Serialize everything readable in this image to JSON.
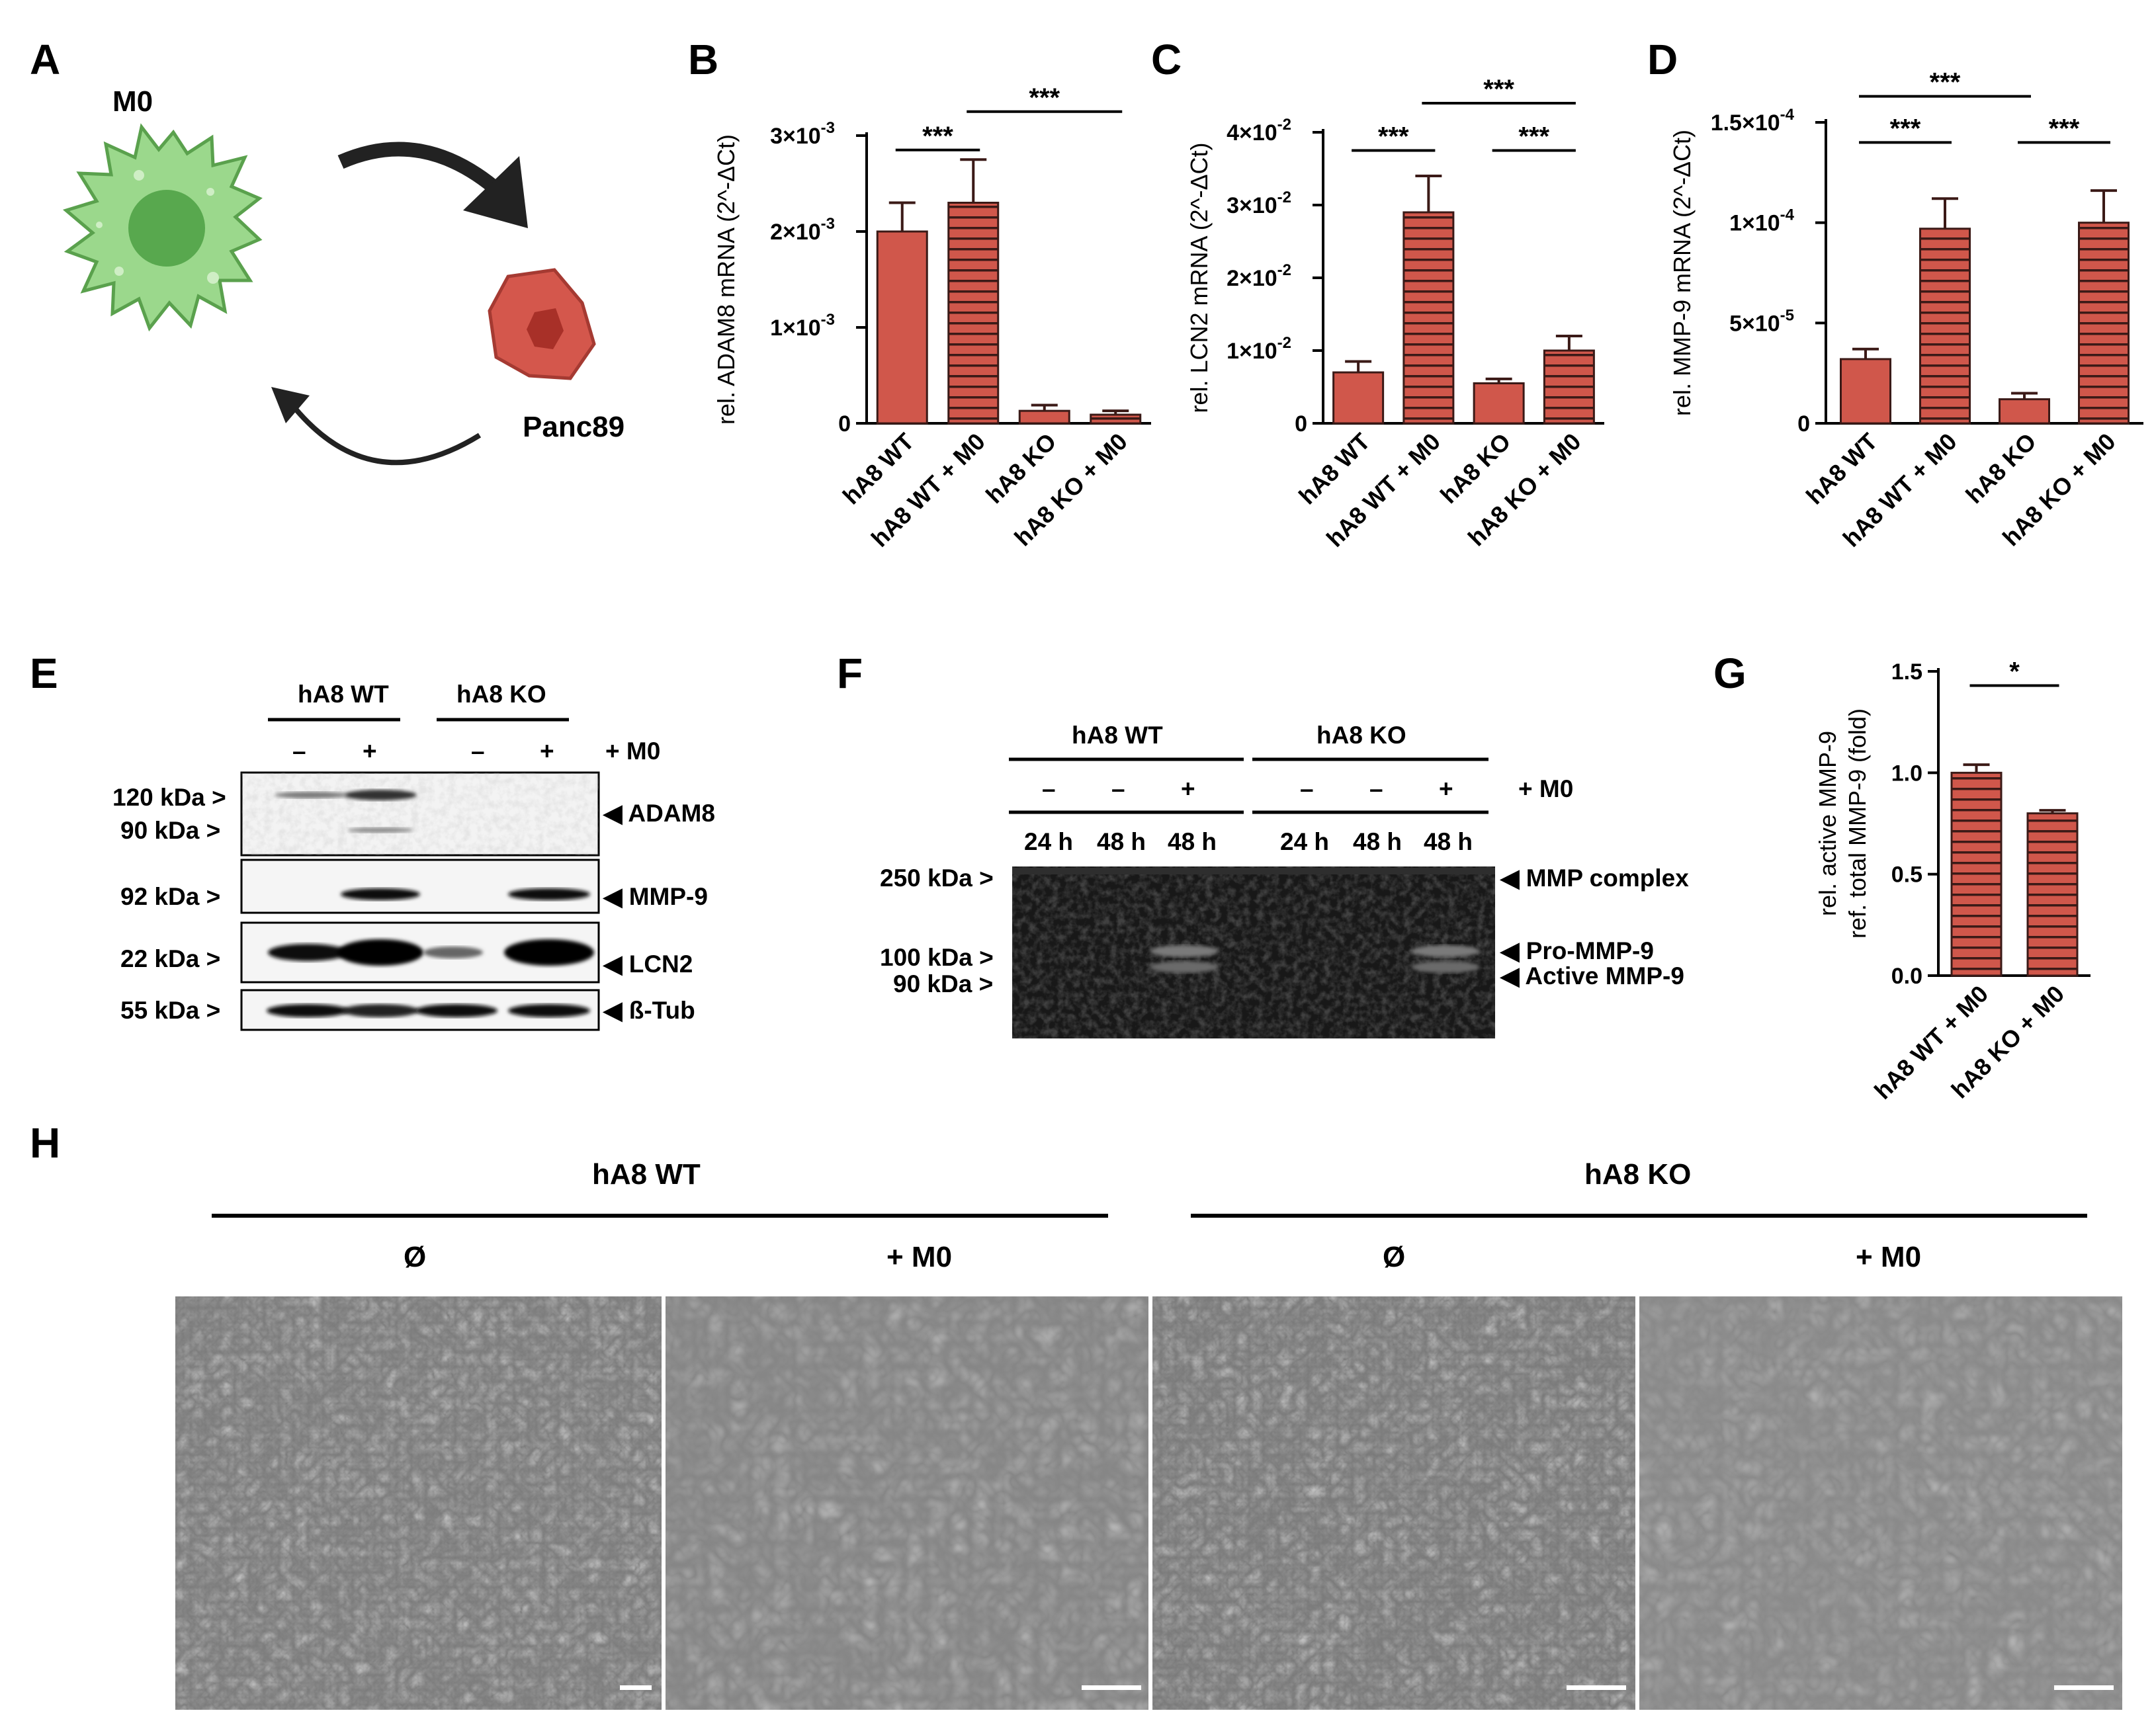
{
  "panel_letters": [
    "A",
    "B",
    "C",
    "D",
    "E",
    "F",
    "G",
    "H"
  ],
  "schematic": {
    "macrophage_label": "M0",
    "cell_label": "Panc89"
  },
  "bar_color": "#d0574b",
  "chart_data": [
    {
      "panel": "B",
      "type": "bar",
      "categories": [
        "hA8 WT",
        "hA8 WT + M0",
        "hA8 KO",
        "hA8 KO + M0"
      ],
      "values": [
        2.0,
        2.3,
        0.13,
        0.09
      ],
      "errors": [
        0.3,
        0.45,
        0.06,
        0.04
      ],
      "hatched": [
        false,
        true,
        false,
        true
      ],
      "ylabel": "rel. ADAM8 mRNA (2^-ΔCt)",
      "ylim": [
        0,
        3
      ],
      "yticks": [
        0,
        1,
        2,
        3
      ],
      "ytick_labels": [
        "0",
        "1×10",
        "2×10",
        "3×10"
      ],
      "ytick_exp": [
        "",
        "-3",
        "-3",
        "-3"
      ],
      "brackets": [
        {
          "from": 1,
          "to": 2,
          "label": "***",
          "level": 2.85
        },
        {
          "from": 2,
          "to": 4,
          "label": "***",
          "level": 3.25
        }
      ]
    },
    {
      "panel": "C",
      "type": "bar",
      "categories": [
        "hA8 WT",
        "hA8 WT + M0",
        "hA8 KO",
        "hA8 KO + M0"
      ],
      "values": [
        0.7,
        2.9,
        0.55,
        1.0
      ],
      "errors": [
        0.15,
        0.5,
        0.06,
        0.2
      ],
      "hatched": [
        false,
        true,
        false,
        true
      ],
      "ylabel": "rel.  LCN2 mRNA (2^-ΔCt)",
      "ylim": [
        0,
        4
      ],
      "yticks": [
        0,
        1,
        2,
        3,
        4
      ],
      "ytick_labels": [
        "0",
        "1×10",
        "2×10",
        "3×10",
        "4×10"
      ],
      "ytick_exp": [
        "",
        "-2",
        "-2",
        "-2",
        "-2"
      ],
      "brackets": [
        {
          "from": 1,
          "to": 2,
          "label": "***",
          "level": 3.75
        },
        {
          "from": 3,
          "to": 4,
          "label": "***",
          "level": 3.75
        },
        {
          "from": 2,
          "to": 4,
          "label": "***",
          "level": 4.4
        }
      ]
    },
    {
      "panel": "D",
      "type": "bar",
      "categories": [
        "hA8 WT",
        "hA8 WT + M0",
        "hA8 KO",
        "hA8 KO + M0"
      ],
      "values": [
        3.2,
        9.7,
        1.2,
        10.0
      ],
      "errors": [
        0.5,
        1.5,
        0.3,
        1.6
      ],
      "hatched": [
        false,
        true,
        false,
        true
      ],
      "ylabel": "rel. MMP-9 mRNA (2^-ΔCt)",
      "ylim": [
        0,
        15
      ],
      "yticks": [
        0,
        5,
        10,
        15
      ],
      "ytick_labels": [
        "0",
        "5×10",
        "1×10",
        "1.5×10"
      ],
      "ytick_exp": [
        "",
        "-5",
        "-4",
        "-4"
      ],
      "brackets": [
        {
          "from": 1,
          "to": 2,
          "label": "***",
          "level": 14.0
        },
        {
          "from": 3,
          "to": 4,
          "label": "***",
          "level": 14.0
        },
        {
          "from": 1,
          "to": 3,
          "label": "***",
          "level": 16.3
        }
      ]
    },
    {
      "panel": "G",
      "type": "bar",
      "categories": [
        "hA8 WT + M0",
        "hA8 KO + M0"
      ],
      "values": [
        1.0,
        0.8
      ],
      "errors": [
        0.04,
        0.015
      ],
      "hatched": [
        true,
        true
      ],
      "ylabel": [
        "rel. active MMP-9",
        "ref. total MMP-9 (fold)"
      ],
      "ylim": [
        0,
        1.5
      ],
      "yticks": [
        0,
        0.5,
        1.0,
        1.5
      ],
      "ytick_labels": [
        "0.0",
        "0.5",
        "1.0",
        "1.5"
      ],
      "ytick_exp": [
        "",
        "",
        "",
        ""
      ],
      "brackets": [
        {
          "from": 1,
          "to": 2,
          "label": "*",
          "level": 1.43
        }
      ]
    }
  ],
  "western": {
    "groups": [
      "hA8 WT",
      "hA8 KO"
    ],
    "treatment": "+ M0",
    "lane_signs": [
      "–",
      "+",
      "–",
      "+"
    ],
    "rows": [
      {
        "name": "ADAM8",
        "markers": [
          "120 kDa >",
          "90 kDa >"
        ]
      },
      {
        "name": "MMP-9",
        "markers": [
          "92 kDa >"
        ]
      },
      {
        "name": "LCN2",
        "markers": [
          "22 kDa >"
        ]
      },
      {
        "name": "ß-Tub",
        "markers": [
          "55 kDa >"
        ]
      }
    ]
  },
  "zymography": {
    "groups": [
      "hA8 WT",
      "hA8 KO"
    ],
    "treatment": "+ M0",
    "lane_signs": [
      "–",
      "–",
      "+",
      "–",
      "–",
      "+"
    ],
    "lane_times": [
      "24 h",
      "48 h",
      "48 h",
      "24 h",
      "48 h",
      "48 h"
    ],
    "markers": [
      "250 kDa >",
      "100 kDa >",
      "90 kDa >"
    ],
    "bands": [
      "MMP complex",
      "Pro-MMP-9",
      "Active MMP-9"
    ]
  },
  "micrographs": {
    "groups": [
      "hA8 WT",
      "hA8 KO"
    ],
    "conditions": [
      "Ø",
      "+ M0",
      "Ø",
      "+ M0"
    ]
  }
}
